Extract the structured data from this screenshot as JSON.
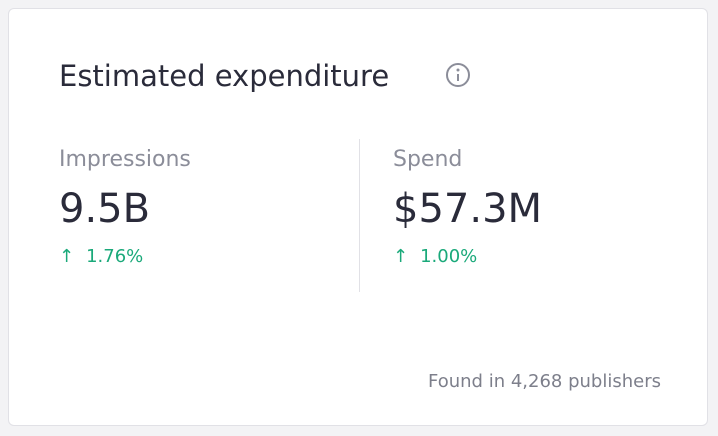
{
  "header": {
    "title": "Estimated expenditure"
  },
  "metrics": [
    {
      "label": "Impressions",
      "value": "9.5B",
      "change": "1.76%"
    },
    {
      "label": "Spend",
      "value": "$57.3M",
      "change": "1.00%"
    }
  ],
  "footer": "Found in 4,268 publishers"
}
